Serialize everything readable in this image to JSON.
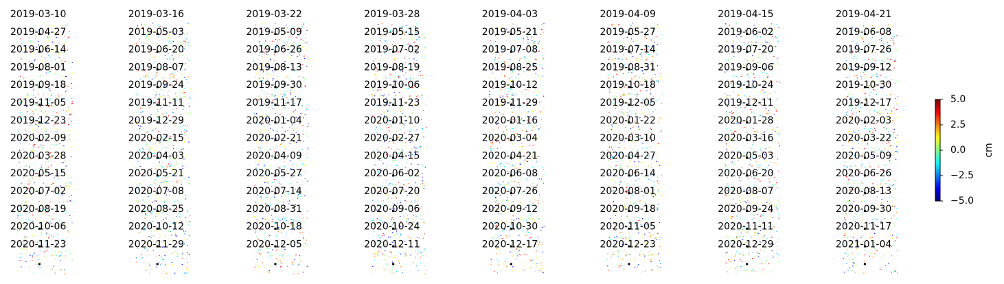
{
  "panels": [
    "2019-03-10",
    "2019-03-16",
    "2019-03-22",
    "2019-03-28",
    "2019-04-03",
    "2019-04-09",
    "2019-04-15",
    "2019-04-21",
    "2019-04-27",
    "2019-05-03",
    "2019-05-09",
    "2019-05-15",
    "2019-05-21",
    "2019-05-27",
    "2019-06-02",
    "2019-06-08",
    "2019-06-14",
    "2019-06-20",
    "2019-06-26",
    "2019-07-02",
    "2019-07-08",
    "2019-07-14",
    "2019-07-20",
    "2019-07-26",
    "2019-08-01",
    "2019-08-07",
    "2019-08-13",
    "2019-08-19",
    "2019-08-25",
    "2019-08-31",
    "2019-09-06",
    "2019-09-12",
    "2019-09-18",
    "2019-09-24",
    "2019-09-30",
    "2019-10-06",
    "2019-10-12",
    "2019-10-18",
    "2019-10-24",
    "2019-10-30",
    "2019-11-05",
    "2019-11-11",
    "2019-11-17",
    "2019-11-23",
    "2019-11-29",
    "2019-12-05",
    "2019-12-11",
    "2019-12-17",
    "2019-12-23",
    "2019-12-29",
    "2020-01-04",
    "2020-01-10",
    "2020-01-16",
    "2020-01-22",
    "2020-01-28",
    "2020-02-03",
    "2020-02-09",
    "2020-02-15",
    "2020-02-21",
    "2020-02-27",
    "2020-03-04",
    "2020-03-10",
    "2020-03-16",
    "2020-03-22",
    "2020-03-28",
    "2020-04-03",
    "2020-04-09",
    "2020-04-15",
    "2020-04-21",
    "2020-04-27",
    "2020-05-03",
    "2020-05-09",
    "2020-05-15",
    "2020-05-21",
    "2020-05-27",
    "2020-06-02",
    "2020-06-08",
    "2020-06-14",
    "2020-06-20",
    "2020-06-26",
    "2020-07-02",
    "2020-07-08",
    "2020-07-14",
    "2020-07-20",
    "2020-07-26",
    "2020-08-01",
    "2020-08-07",
    "2020-08-13",
    "2020-08-19",
    "2020-08-25",
    "2020-08-31",
    "2020-09-06",
    "2020-09-12",
    "2020-09-18",
    "2020-09-24",
    "2020-09-30",
    "2020-10-06",
    "2020-10-12",
    "2020-10-18",
    "2020-10-24",
    "2020-10-30",
    "2020-11-05",
    "2020-11-11",
    "2020-11-17",
    "2020-11-23",
    "2020-11-29",
    "2020-12-05",
    "2020-12-11",
    "2020-12-17",
    "2020-12-23",
    "2020-12-29",
    "2021-01-04"
  ],
  "colorbar": {
    "label": "cm",
    "lim": [
      -5,
      5
    ],
    "ticks": [
      {
        "value": -5,
        "label": "−5.0"
      },
      {
        "value": -2.5,
        "label": "−2.5"
      },
      {
        "value": 0,
        "label": "0.0"
      },
      {
        "value": 2.5,
        "label": "2.5"
      },
      {
        "value": 5,
        "label": "5.0"
      }
    ]
  }
}
